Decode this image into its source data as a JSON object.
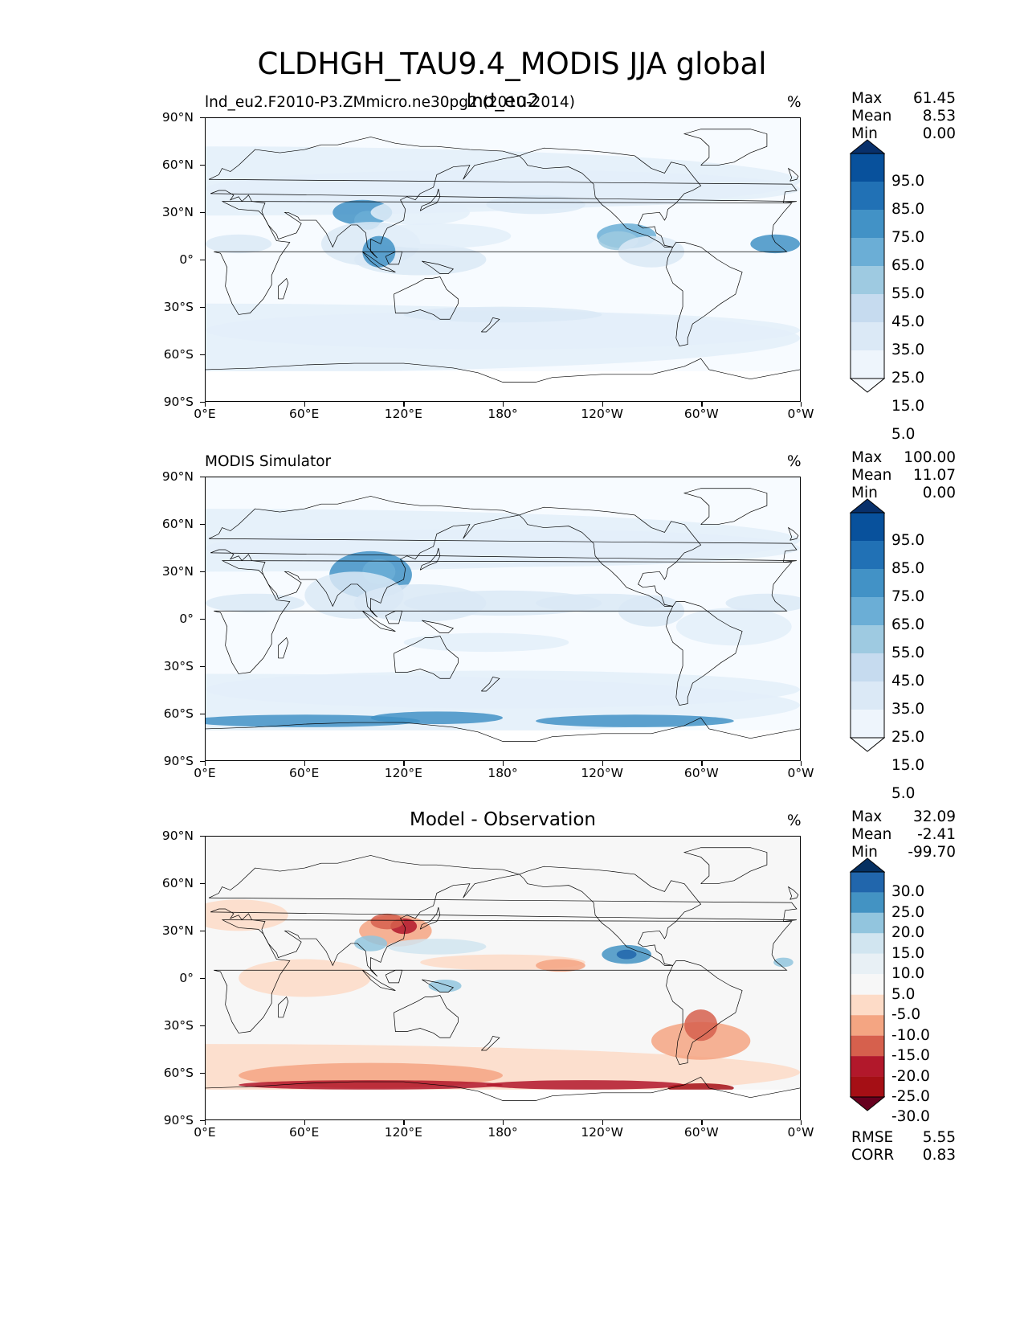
{
  "suptitle": "CLDHGH_TAU9.4_MODIS JJA global",
  "chart_data": [
    {
      "type": "heatmap",
      "title_left": "lnd_eu2.F2010-P3.ZMmicro.ne30pg2 (2010-2014)",
      "title_center": "lnd_eu2",
      "units": "%",
      "stats": {
        "max_label": "Max",
        "max": "61.45",
        "mean_label": "Mean",
        "mean": "8.53",
        "min_label": "Min",
        "min": "0.00"
      },
      "colorbar": {
        "levels": [
          "95.0",
          "85.0",
          "75.0",
          "65.0",
          "55.0",
          "45.0",
          "35.0",
          "25.0",
          "15.0",
          "5.0"
        ],
        "colors": [
          "#08306b",
          "#08519c",
          "#2171b5",
          "#4292c6",
          "#6baed6",
          "#9ecae1",
          "#c6dbef",
          "#dbe9f6",
          "#eef5fc",
          "#f7fbff"
        ],
        "extend": "both"
      },
      "xticks": [
        "0°E",
        "60°E",
        "120°E",
        "180°",
        "120°W",
        "60°W",
        "0°W"
      ],
      "yticks": [
        "90°N",
        "60°N",
        "30°N",
        "0°",
        "30°S",
        "60°S",
        "90°S"
      ],
      "xlim": [
        0,
        360
      ],
      "ylim": [
        -90,
        90
      ]
    },
    {
      "type": "heatmap",
      "title_left": "MODIS Simulator",
      "units": "%",
      "stats": {
        "max_label": "Max",
        "max": "100.00",
        "mean_label": "Mean",
        "mean": "11.07",
        "min_label": "Min",
        "min": "0.00"
      },
      "colorbar": {
        "levels": [
          "95.0",
          "85.0",
          "75.0",
          "65.0",
          "55.0",
          "45.0",
          "35.0",
          "25.0",
          "15.0",
          "5.0"
        ],
        "colors": [
          "#08306b",
          "#08519c",
          "#2171b5",
          "#4292c6",
          "#6baed6",
          "#9ecae1",
          "#c6dbef",
          "#dbe9f6",
          "#eef5fc",
          "#f7fbff"
        ],
        "extend": "both"
      },
      "xticks": [
        "0°E",
        "60°E",
        "120°E",
        "180°",
        "120°W",
        "60°W",
        "0°W"
      ],
      "yticks": [
        "90°N",
        "60°N",
        "30°N",
        "0°",
        "30°S",
        "60°S",
        "90°S"
      ],
      "xlim": [
        0,
        360
      ],
      "ylim": [
        -90,
        90
      ]
    },
    {
      "type": "heatmap",
      "title_center": "Model - Observation",
      "units": "%",
      "stats": {
        "max_label": "Max",
        "max": "32.09",
        "mean_label": "Mean",
        "mean": "-2.41",
        "min_label": "Min",
        "min": "-99.70"
      },
      "colorbar": {
        "levels": [
          "30.0",
          "25.0",
          "20.0",
          "15.0",
          "10.0",
          "5.0",
          "-5.0",
          "-10.0",
          "-15.0",
          "-20.0",
          "-25.0",
          "-30.0"
        ],
        "colors": [
          "#053061",
          "#2166ac",
          "#4393c3",
          "#92c5de",
          "#d1e5f0",
          "#e8f0f5",
          "#f7f7f7",
          "#fddbc7",
          "#f4a582",
          "#d6604d",
          "#b2182b",
          "#a50f15",
          "#67001f"
        ],
        "extend": "both"
      },
      "metrics": {
        "rmse_label": "RMSE",
        "rmse": "5.55",
        "corr_label": "CORR",
        "corr": "0.83"
      },
      "xticks": [
        "0°E",
        "60°E",
        "120°E",
        "180°",
        "120°W",
        "60°W",
        "0°W"
      ],
      "yticks": [
        "90°N",
        "60°N",
        "30°N",
        "0°",
        "30°S",
        "60°S",
        "90°S"
      ],
      "xlim": [
        0,
        360
      ],
      "ylim": [
        -90,
        90
      ]
    }
  ]
}
